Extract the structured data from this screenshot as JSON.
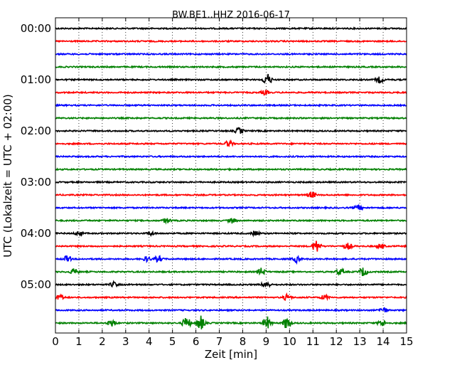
{
  "chart_data": {
    "type": "line",
    "title": "BW.BE1..HHZ 2016-06-17",
    "xlabel": "Zeit  [min]",
    "ylabel": "UTC (Lokalzeit = UTC + 02:00)",
    "xlim": [
      0,
      15
    ],
    "x_ticks": [
      "0",
      "1",
      "2",
      "3",
      "4",
      "5",
      "6",
      "7",
      "8",
      "9",
      "10",
      "11",
      "12",
      "13",
      "14",
      "15"
    ],
    "y_tick_labels": [
      "00:00",
      "01:00",
      "02:00",
      "03:00",
      "04:00",
      "05:00"
    ],
    "grid": true,
    "trace_interval_minutes": 15,
    "trace_colors": [
      "#000000",
      "#ff0000",
      "#0000ff",
      "#008000"
    ],
    "traces": [
      {
        "start": "00:00",
        "events": []
      },
      {
        "start": "00:15",
        "events": []
      },
      {
        "start": "00:30",
        "events": []
      },
      {
        "start": "00:45",
        "events": []
      },
      {
        "start": "01:00",
        "events": [
          [
            9.05,
            1.0
          ],
          [
            13.85,
            0.5
          ]
        ]
      },
      {
        "start": "01:15",
        "events": [
          [
            8.95,
            0.35
          ]
        ]
      },
      {
        "start": "01:30",
        "events": []
      },
      {
        "start": "01:45",
        "events": []
      },
      {
        "start": "02:00",
        "events": [
          [
            7.85,
            0.5
          ]
        ]
      },
      {
        "start": "02:15",
        "events": [
          [
            7.4,
            0.5
          ]
        ]
      },
      {
        "start": "02:30",
        "events": []
      },
      {
        "start": "02:45",
        "events": []
      },
      {
        "start": "03:00",
        "events": []
      },
      {
        "start": "03:15",
        "events": [
          [
            10.95,
            0.55
          ]
        ]
      },
      {
        "start": "03:30",
        "events": [
          [
            12.95,
            0.4
          ]
        ]
      },
      {
        "start": "03:45",
        "events": [
          [
            4.75,
            0.4
          ],
          [
            7.55,
            0.4
          ]
        ]
      },
      {
        "start": "04:00",
        "events": [
          [
            1.0,
            0.4
          ],
          [
            4.1,
            0.3
          ],
          [
            8.55,
            0.4
          ]
        ]
      },
      {
        "start": "04:15",
        "events": [
          [
            11.15,
            1.1
          ],
          [
            12.5,
            0.5
          ],
          [
            13.9,
            0.4
          ]
        ]
      },
      {
        "start": "04:30",
        "events": [
          [
            0.5,
            0.5
          ],
          [
            3.9,
            0.4
          ],
          [
            4.4,
            0.5
          ],
          [
            10.3,
            0.5
          ]
        ]
      },
      {
        "start": "04:45",
        "events": [
          [
            0.8,
            0.5
          ],
          [
            8.8,
            0.6
          ],
          [
            12.15,
            0.5
          ],
          [
            13.15,
            0.7
          ]
        ]
      },
      {
        "start": "05:00",
        "events": [
          [
            2.5,
            0.4
          ],
          [
            9.0,
            0.6
          ]
        ]
      },
      {
        "start": "05:15",
        "events": [
          [
            0.2,
            0.5
          ],
          [
            9.9,
            0.5
          ],
          [
            11.5,
            0.4
          ]
        ]
      },
      {
        "start": "05:30",
        "events": [
          [
            14.0,
            0.5
          ]
        ]
      },
      {
        "start": "05:45",
        "events": [
          [
            2.4,
            0.6
          ],
          [
            5.6,
            1.0
          ],
          [
            6.2,
            1.2
          ],
          [
            9.05,
            1.0
          ],
          [
            9.9,
            1.1
          ],
          [
            13.95,
            0.5
          ]
        ]
      }
    ]
  }
}
